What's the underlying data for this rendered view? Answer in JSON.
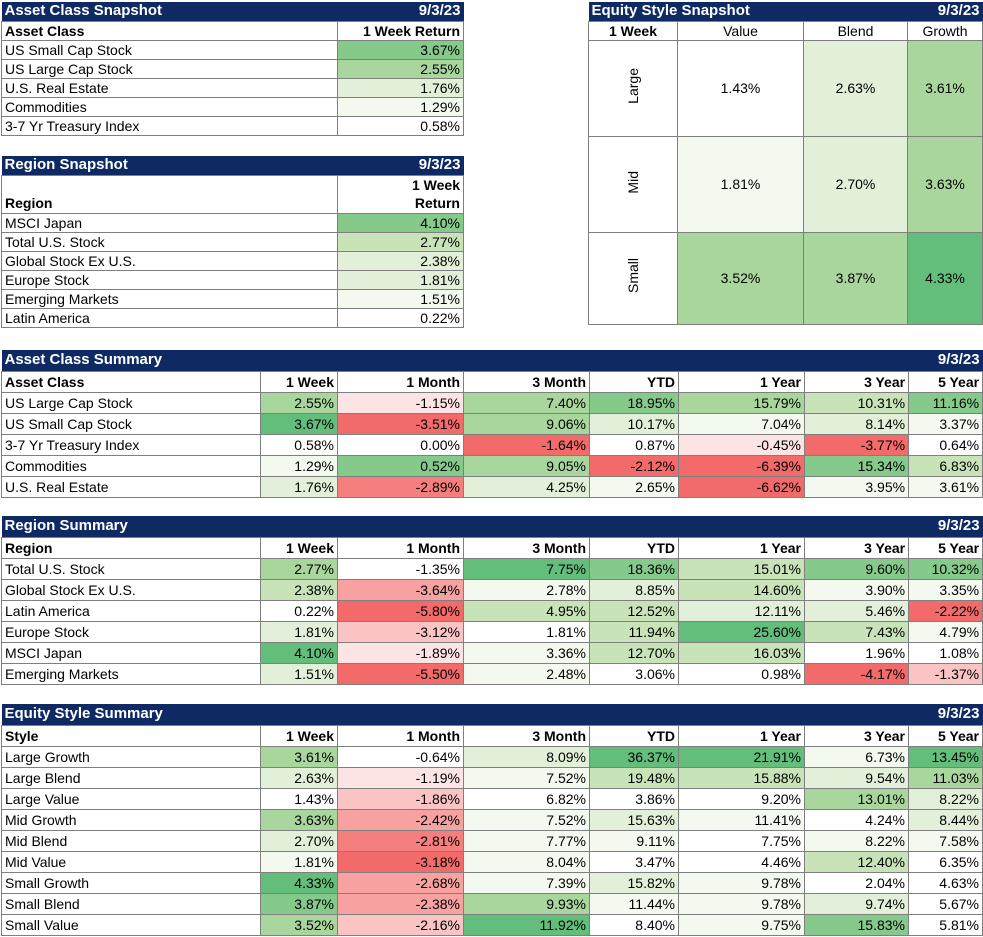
{
  "colors": {
    "header_bg": "#0f2a63",
    "header_text": "#ffffff",
    "g5": "#63be7b",
    "g4": "#85c98b",
    "g3": "#a8d69c",
    "g2": "#c8e3b8",
    "g1": "#e3f0d9",
    "g0": "#f4f9ef",
    "r1": "#fde4e4",
    "r2": "#fbc4c4",
    "r3": "#f8a1a1",
    "r4": "#f57f7f",
    "r5": "#f26a6a"
  },
  "asset_snapshot": {
    "title": "Asset Class Snapshot",
    "date": "9/3/23",
    "col1": "Asset Class",
    "col2": "1 Week Return",
    "rows": [
      {
        "name": "US Small Cap Stock",
        "value": "3.67%",
        "c": "g4"
      },
      {
        "name": "US Large Cap Stock",
        "value": "2.55%",
        "c": "g3"
      },
      {
        "name": "U.S. Real Estate",
        "value": "1.76%",
        "c": "g1"
      },
      {
        "name": "Commodities",
        "value": "1.29%",
        "c": "g0"
      },
      {
        "name": "3-7 Yr Treasury Index",
        "value": "0.58%",
        "c": "w"
      }
    ]
  },
  "region_snapshot": {
    "title": "Region Snapshot",
    "date": "9/3/23",
    "col1": "Region",
    "col2a": "1 Week",
    "col2b": "Return",
    "rows": [
      {
        "name": "MSCI Japan",
        "value": "4.10%",
        "c": "g4"
      },
      {
        "name": "Total U.S. Stock",
        "value": "2.77%",
        "c": "g2"
      },
      {
        "name": "Global Stock Ex U.S.",
        "value": "2.38%",
        "c": "g1"
      },
      {
        "name": "Europe Stock",
        "value": "1.81%",
        "c": "g1"
      },
      {
        "name": "Emerging Markets",
        "value": "1.51%",
        "c": "g0"
      },
      {
        "name": "Latin America",
        "value": "0.22%",
        "c": "w"
      }
    ]
  },
  "style_snapshot": {
    "title": "Equity Style Snapshot",
    "date": "9/3/23",
    "corner": "1 Week",
    "cols": [
      "Value",
      "Blend",
      "Growth"
    ],
    "rows": [
      {
        "name": "Large",
        "cells": [
          {
            "v": "1.43%",
            "c": "w"
          },
          {
            "v": "2.63%",
            "c": "g1"
          },
          {
            "v": "3.61%",
            "c": "g3"
          }
        ]
      },
      {
        "name": "Mid",
        "cells": [
          {
            "v": "1.81%",
            "c": "g0"
          },
          {
            "v": "2.70%",
            "c": "g1"
          },
          {
            "v": "3.63%",
            "c": "g3"
          }
        ]
      },
      {
        "name": "Small",
        "cells": [
          {
            "v": "3.52%",
            "c": "g3"
          },
          {
            "v": "3.87%",
            "c": "g3"
          },
          {
            "v": "4.33%",
            "c": "g5"
          }
        ]
      }
    ]
  },
  "asset_summary": {
    "title": "Asset Class Summary",
    "date": "9/3/23",
    "cols": [
      "Asset Class",
      "1 Week",
      "1 Month",
      "3 Month",
      "YTD",
      "1 Year",
      "3 Year",
      "5 Year"
    ],
    "rows": [
      {
        "name": "US Large Cap Stock",
        "cells": [
          [
            "2.55%",
            "g3"
          ],
          [
            "-1.15%",
            "r1"
          ],
          [
            "7.40%",
            "g3"
          ],
          [
            "18.95%",
            "g4"
          ],
          [
            "15.79%",
            "g3"
          ],
          [
            "10.31%",
            "g2"
          ],
          [
            "11.16%",
            "g4"
          ]
        ]
      },
      {
        "name": "US Small Cap Stock",
        "cells": [
          [
            "3.67%",
            "g5"
          ],
          [
            "-3.51%",
            "r5"
          ],
          [
            "9.06%",
            "g3"
          ],
          [
            "10.17%",
            "g1"
          ],
          [
            "7.04%",
            "g0"
          ],
          [
            "8.14%",
            "g1"
          ],
          [
            "3.37%",
            "g0"
          ]
        ]
      },
      {
        "name": "3-7 Yr Treasury Index",
        "cells": [
          [
            "0.58%",
            "w"
          ],
          [
            "0.00%",
            "w"
          ],
          [
            "-1.64%",
            "r5"
          ],
          [
            "0.87%",
            "w"
          ],
          [
            "-0.45%",
            "r1"
          ],
          [
            "-3.77%",
            "r5"
          ],
          [
            "0.64%",
            "w"
          ]
        ]
      },
      {
        "name": "Commodities",
        "cells": [
          [
            "1.29%",
            "g0"
          ],
          [
            "0.52%",
            "g4"
          ],
          [
            "9.05%",
            "g3"
          ],
          [
            "-2.12%",
            "r5"
          ],
          [
            "-6.39%",
            "r5"
          ],
          [
            "15.34%",
            "g4"
          ],
          [
            "6.83%",
            "g2"
          ]
        ]
      },
      {
        "name": "U.S. Real Estate",
        "cells": [
          [
            "1.76%",
            "g1"
          ],
          [
            "-2.89%",
            "r4"
          ],
          [
            "4.25%",
            "g1"
          ],
          [
            "2.65%",
            "g0"
          ],
          [
            "-6.62%",
            "r5"
          ],
          [
            "3.95%",
            "g0"
          ],
          [
            "3.61%",
            "g0"
          ]
        ]
      }
    ]
  },
  "region_summary": {
    "title": "Region Summary",
    "date": "9/3/23",
    "cols": [
      "Region",
      "1 Week",
      "1 Month",
      "3 Month",
      "YTD",
      "1 Year",
      "3 Year",
      "5 Year"
    ],
    "rows": [
      {
        "name": "Total U.S. Stock",
        "cells": [
          [
            "2.77%",
            "g3"
          ],
          [
            "-1.35%",
            "w"
          ],
          [
            "7.75%",
            "g5"
          ],
          [
            "18.36%",
            "g4"
          ],
          [
            "15.01%",
            "g2"
          ],
          [
            "9.60%",
            "g4"
          ],
          [
            "10.32%",
            "g4"
          ]
        ]
      },
      {
        "name": "Global Stock Ex U.S.",
        "cells": [
          [
            "2.38%",
            "g2"
          ],
          [
            "-3.64%",
            "r3"
          ],
          [
            "2.78%",
            "g0"
          ],
          [
            "8.85%",
            "g1"
          ],
          [
            "14.60%",
            "g2"
          ],
          [
            "3.90%",
            "g0"
          ],
          [
            "3.35%",
            "g0"
          ]
        ]
      },
      {
        "name": "Latin America",
        "cells": [
          [
            "0.22%",
            "w"
          ],
          [
            "-5.80%",
            "r5"
          ],
          [
            "4.95%",
            "g2"
          ],
          [
            "12.52%",
            "g2"
          ],
          [
            "12.11%",
            "g1"
          ],
          [
            "5.46%",
            "g1"
          ],
          [
            "-2.22%",
            "r5"
          ]
        ]
      },
      {
        "name": "Europe Stock",
        "cells": [
          [
            "1.81%",
            "g1"
          ],
          [
            "-3.12%",
            "r2"
          ],
          [
            "1.81%",
            "w"
          ],
          [
            "11.94%",
            "g2"
          ],
          [
            "25.60%",
            "g5"
          ],
          [
            "7.43%",
            "g2"
          ],
          [
            "4.79%",
            "g0"
          ]
        ]
      },
      {
        "name": "MSCI Japan",
        "cells": [
          [
            "4.10%",
            "g5"
          ],
          [
            "-1.89%",
            "r1"
          ],
          [
            "3.36%",
            "g0"
          ],
          [
            "12.70%",
            "g2"
          ],
          [
            "16.03%",
            "g2"
          ],
          [
            "1.96%",
            "w"
          ],
          [
            "1.08%",
            "w"
          ]
        ]
      },
      {
        "name": "Emerging Markets",
        "cells": [
          [
            "1.51%",
            "g1"
          ],
          [
            "-5.50%",
            "r5"
          ],
          [
            "2.48%",
            "g0"
          ],
          [
            "3.06%",
            "w"
          ],
          [
            "0.98%",
            "w"
          ],
          [
            "-4.17%",
            "r5"
          ],
          [
            "-1.37%",
            "r2"
          ]
        ]
      }
    ]
  },
  "style_summary": {
    "title": "Equity Style Summary",
    "date": "9/3/23",
    "cols": [
      "Style",
      "1 Week",
      "1 Month",
      "3 Month",
      "YTD",
      "1 Year",
      "3 Year",
      "5 Year"
    ],
    "rows": [
      {
        "name": "Large Growth",
        "cells": [
          [
            "3.61%",
            "g3"
          ],
          [
            "-0.64%",
            "w"
          ],
          [
            "8.09%",
            "g1"
          ],
          [
            "36.37%",
            "g5"
          ],
          [
            "21.91%",
            "g5"
          ],
          [
            "6.73%",
            "g0"
          ],
          [
            "13.45%",
            "g5"
          ]
        ]
      },
      {
        "name": "Large Blend",
        "cells": [
          [
            "2.63%",
            "g1"
          ],
          [
            "-1.19%",
            "r1"
          ],
          [
            "7.52%",
            "g0"
          ],
          [
            "19.48%",
            "g2"
          ],
          [
            "15.88%",
            "g2"
          ],
          [
            "9.54%",
            "g1"
          ],
          [
            "11.03%",
            "g3"
          ]
        ]
      },
      {
        "name": "Large Value",
        "cells": [
          [
            "1.43%",
            "w"
          ],
          [
            "-1.86%",
            "r2"
          ],
          [
            "6.82%",
            "w"
          ],
          [
            "3.86%",
            "w"
          ],
          [
            "9.20%",
            "w"
          ],
          [
            "13.01%",
            "g3"
          ],
          [
            "8.22%",
            "g1"
          ]
        ]
      },
      {
        "name": "Mid Growth",
        "cells": [
          [
            "3.63%",
            "g3"
          ],
          [
            "-2.42%",
            "r3"
          ],
          [
            "7.52%",
            "g0"
          ],
          [
            "15.63%",
            "g1"
          ],
          [
            "11.41%",
            "g0"
          ],
          [
            "4.24%",
            "w"
          ],
          [
            "8.44%",
            "g1"
          ]
        ]
      },
      {
        "name": "Mid Blend",
        "cells": [
          [
            "2.70%",
            "g1"
          ],
          [
            "-2.81%",
            "r4"
          ],
          [
            "7.77%",
            "g0"
          ],
          [
            "9.11%",
            "g0"
          ],
          [
            "7.75%",
            "w"
          ],
          [
            "8.22%",
            "g0"
          ],
          [
            "7.58%",
            "g0"
          ]
        ]
      },
      {
        "name": "Mid Value",
        "cells": [
          [
            "1.81%",
            "g0"
          ],
          [
            "-3.18%",
            "r5"
          ],
          [
            "8.04%",
            "g0"
          ],
          [
            "3.47%",
            "w"
          ],
          [
            "4.46%",
            "w"
          ],
          [
            "12.40%",
            "g2"
          ],
          [
            "6.35%",
            "w"
          ]
        ]
      },
      {
        "name": "Small Growth",
        "cells": [
          [
            "4.33%",
            "g5"
          ],
          [
            "-2.68%",
            "r3"
          ],
          [
            "7.39%",
            "g0"
          ],
          [
            "15.82%",
            "g1"
          ],
          [
            "9.78%",
            "g0"
          ],
          [
            "2.04%",
            "w"
          ],
          [
            "4.63%",
            "w"
          ]
        ]
      },
      {
        "name": "Small Blend",
        "cells": [
          [
            "3.87%",
            "g4"
          ],
          [
            "-2.38%",
            "r3"
          ],
          [
            "9.93%",
            "g3"
          ],
          [
            "11.44%",
            "g0"
          ],
          [
            "9.78%",
            "g0"
          ],
          [
            "9.74%",
            "g1"
          ],
          [
            "5.67%",
            "w"
          ]
        ]
      },
      {
        "name": "Small Value",
        "cells": [
          [
            "3.52%",
            "g3"
          ],
          [
            "-2.16%",
            "r2"
          ],
          [
            "11.92%",
            "g5"
          ],
          [
            "8.40%",
            "w"
          ],
          [
            "9.75%",
            "g0"
          ],
          [
            "15.83%",
            "g4"
          ],
          [
            "5.81%",
            "w"
          ]
        ]
      }
    ]
  }
}
